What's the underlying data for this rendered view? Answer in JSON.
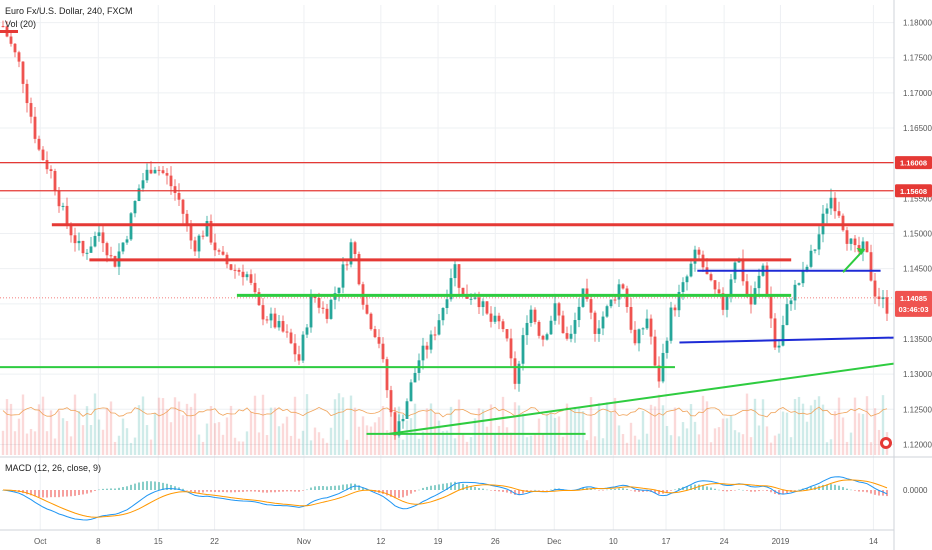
{
  "header": {
    "symbol_line": "Euro Fx/U.S. Dollar, 240, FXCM",
    "volume_label": "Vol (20)",
    "macd_label": "MACD (12, 26, close, 9)"
  },
  "colors": {
    "up": "#26a69a",
    "down": "#ef5350",
    "resistance": "#e53935",
    "support": "#2ecc40",
    "range": "#1e2bd6",
    "macd_line": "#2196f3",
    "signal_line": "#ff9800"
  },
  "chart_data": {
    "type": "candlestick",
    "price_axis": {
      "min": 1.1185,
      "max": 1.1825,
      "ticks": [
        "1.18000",
        "1.17500",
        "1.17000",
        "1.16500",
        "1.16000",
        "1.15500",
        "1.15000",
        "1.14500",
        "1.14000",
        "1.13500",
        "1.13000",
        "1.12500",
        "1.12000"
      ]
    },
    "x_axis": {
      "ticks": [
        {
          "label": "Oct",
          "pos": 0.045
        },
        {
          "label": "8",
          "pos": 0.11
        },
        {
          "label": "15",
          "pos": 0.177
        },
        {
          "label": "22",
          "pos": 0.24
        },
        {
          "label": "Nov",
          "pos": 0.34
        },
        {
          "label": "12",
          "pos": 0.426
        },
        {
          "label": "19",
          "pos": 0.49
        },
        {
          "label": "26",
          "pos": 0.554
        },
        {
          "label": "Dec",
          "pos": 0.62
        },
        {
          "label": "10",
          "pos": 0.686
        },
        {
          "label": "17",
          "pos": 0.745
        },
        {
          "label": "24",
          "pos": 0.81
        },
        {
          "label": "2019",
          "pos": 0.873
        },
        {
          "label": "14",
          "pos": 0.977
        }
      ]
    },
    "path": [
      [
        0,
        1.1795
      ],
      [
        0.02,
        1.1735
      ],
      [
        0.04,
        1.162
      ],
      [
        0.055,
        1.1585
      ],
      [
        0.07,
        1.152
      ],
      [
        0.09,
        1.147
      ],
      [
        0.11,
        1.1505
      ],
      [
        0.125,
        1.1455
      ],
      [
        0.14,
        1.15
      ],
      [
        0.155,
        1.157
      ],
      [
        0.17,
        1.16
      ],
      [
        0.185,
        1.158
      ],
      [
        0.2,
        1.1545
      ],
      [
        0.215,
        1.148
      ],
      [
        0.23,
        1.151
      ],
      [
        0.245,
        1.1465
      ],
      [
        0.26,
        1.145
      ],
      [
        0.275,
        1.1445
      ],
      [
        0.29,
        1.139
      ],
      [
        0.305,
        1.1375
      ],
      [
        0.32,
        1.1355
      ],
      [
        0.335,
        1.132
      ],
      [
        0.35,
        1.1415
      ],
      [
        0.365,
        1.1385
      ],
      [
        0.38,
        1.143
      ],
      [
        0.395,
        1.149
      ],
      [
        0.41,
        1.139
      ],
      [
        0.425,
        1.135
      ],
      [
        0.44,
        1.1235
      ],
      [
        0.445,
        1.1215
      ],
      [
        0.455,
        1.1255
      ],
      [
        0.47,
        1.132
      ],
      [
        0.485,
        1.135
      ],
      [
        0.5,
        1.1405
      ],
      [
        0.51,
        1.146
      ],
      [
        0.52,
        1.141
      ],
      [
        0.535,
        1.1415
      ],
      [
        0.55,
        1.1375
      ],
      [
        0.565,
        1.137
      ],
      [
        0.58,
        1.1285
      ],
      [
        0.595,
        1.14
      ],
      [
        0.61,
        1.135
      ],
      [
        0.625,
        1.1395
      ],
      [
        0.64,
        1.134
      ],
      [
        0.655,
        1.1415
      ],
      [
        0.67,
        1.1365
      ],
      [
        0.685,
        1.1395
      ],
      [
        0.7,
        1.1435
      ],
      [
        0.715,
        1.134
      ],
      [
        0.73,
        1.1385
      ],
      [
        0.74,
        1.128
      ],
      [
        0.755,
        1.1385
      ],
      [
        0.77,
        1.1425
      ],
      [
        0.785,
        1.1475
      ],
      [
        0.8,
        1.1425
      ],
      [
        0.815,
        1.1395
      ],
      [
        0.83,
        1.1475
      ],
      [
        0.845,
        1.1395
      ],
      [
        0.86,
        1.1455
      ],
      [
        0.875,
        1.1325
      ],
      [
        0.89,
        1.141
      ],
      [
        0.905,
        1.144
      ],
      [
        0.92,
        1.1485
      ],
      [
        0.935,
        1.1555
      ],
      [
        0.945,
        1.1535
      ],
      [
        0.955,
        1.1495
      ],
      [
        0.965,
        1.147
      ],
      [
        0.975,
        1.148
      ],
      [
        0.985,
        1.142
      ],
      [
        1.0,
        1.1395
      ]
    ],
    "levels": [
      {
        "price": 1.16008,
        "label": "1.16008",
        "color": "#e53935",
        "width": 1.2
      },
      {
        "price": 1.15608,
        "label": "1.15608",
        "color": "#e53935",
        "width": 1.2
      },
      {
        "price": 1.15125,
        "from": 0.058,
        "to": 1.0,
        "color": "#e53935",
        "width": 3
      },
      {
        "price": 1.14625,
        "from": 0.1,
        "to": 0.885,
        "color": "#e53935",
        "width": 3
      },
      {
        "price": 1.1447,
        "from": 0.78,
        "to": 0.985,
        "color": "#1e2bd6",
        "width": 2
      },
      {
        "price": 1.1412,
        "from": 0.265,
        "to": 0.885,
        "color": "#2ecc40",
        "width": 3
      },
      {
        "price": 1.131,
        "from": 0.0,
        "to": 0.755,
        "color": "#2ecc40",
        "width": 2
      }
    ],
    "trendlines": [
      {
        "from": [
          0.435,
          1.1215
        ],
        "to": [
          1.0,
          1.1315
        ],
        "color": "#2ecc40",
        "width": 2
      },
      {
        "from": [
          0.76,
          1.1345
        ],
        "to": [
          1.0,
          1.1352
        ],
        "color": "#1e2bd6",
        "width": 2
      }
    ],
    "segments": [
      {
        "from": [
          0.41,
          1.1215
        ],
        "to": [
          0.655,
          1.1215
        ],
        "color": "#2ecc40",
        "width": 2
      }
    ],
    "arrow": {
      "from": [
        0.943,
        1.1445
      ],
      "to": [
        0.967,
        1.1478
      ],
      "color": "#2ecc40"
    },
    "last_price": {
      "price": 1.14085,
      "label": "1.14085",
      "countdown": "03:46:03",
      "color": "#ef5350"
    },
    "macd_axis": {
      "ticks": [
        "0.0000"
      ]
    }
  }
}
